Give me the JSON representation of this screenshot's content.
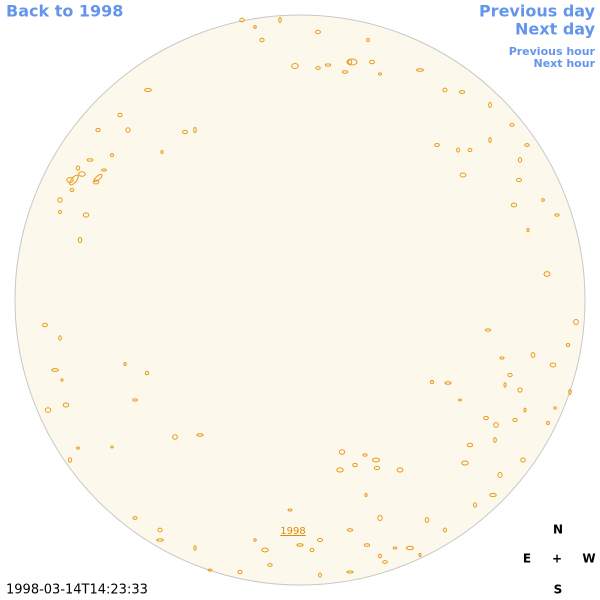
{
  "nav": {
    "back": "Back to 1998",
    "previous_day": "Previous day",
    "next_day": "Next day",
    "previous_hour": "Previous hour",
    "next_hour": "Next hour"
  },
  "disk_label": "1998",
  "timestamp": "1998-03-14T14:23:33",
  "compass": {
    "north": "N",
    "east": "E",
    "center": "+",
    "west": "W",
    "south": "S"
  }
}
